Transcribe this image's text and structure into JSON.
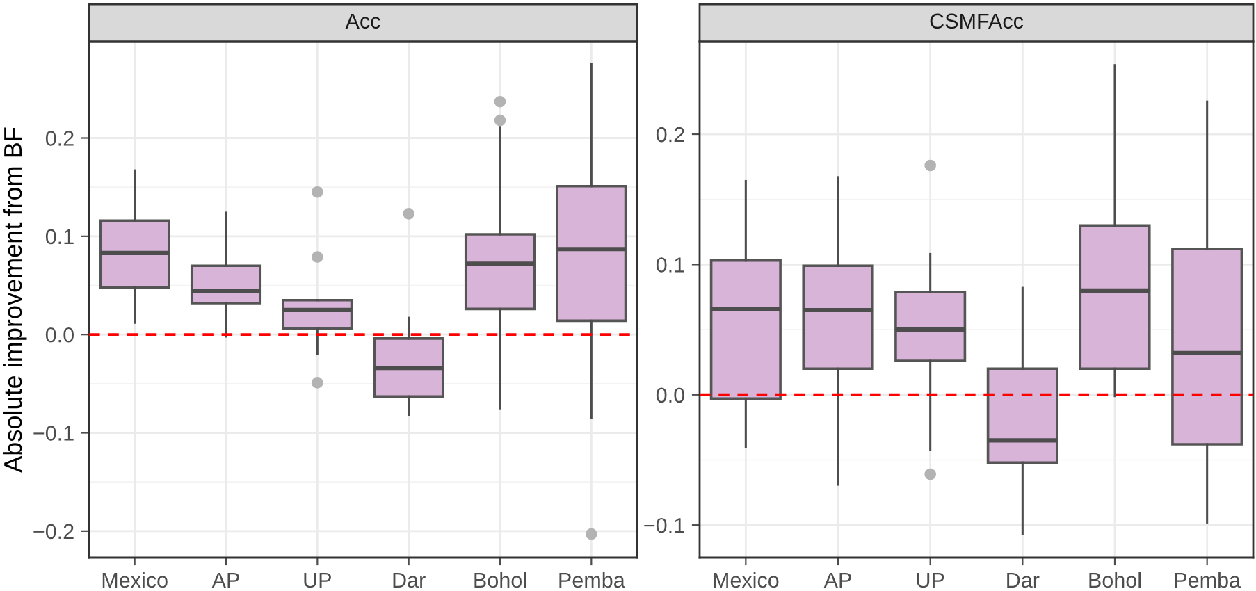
{
  "chart_data": [
    {
      "type": "box",
      "title": "Acc",
      "ylabel": "Absolute improvement from BF",
      "categories": [
        "Mexico",
        "AP",
        "UP",
        "Dar",
        "Bohol",
        "Pemba"
      ],
      "ylim": [
        -0.227,
        0.298
      ],
      "yticks": [
        {
          "value": -0.2,
          "label": "−0.2"
        },
        {
          "value": -0.1,
          "label": "−0.1"
        },
        {
          "value": 0,
          "label": "0.0"
        },
        {
          "value": 0.1,
          "label": "0.1"
        },
        {
          "value": 0.2,
          "label": "0.2"
        }
      ],
      "grid": true,
      "legend": false,
      "series": [
        {
          "color": "#d8b4d8",
          "boxes": [
            {
              "low": 0.012,
              "q1": 0.048,
              "median": 0.083,
              "q3": 0.116,
              "high": 0.167
            },
            {
              "low": -0.002,
              "q1": 0.032,
              "median": 0.044,
              "q3": 0.07,
              "high": 0.124
            },
            {
              "low": -0.02,
              "q1": 0.006,
              "median": 0.025,
              "q3": 0.035,
              "high": 0.035,
              "outliers": [
                0.145,
                0.079,
                -0.049
              ]
            },
            {
              "low": -0.082,
              "q1": -0.063,
              "median": -0.034,
              "q3": -0.004,
              "high": 0.017,
              "outliers": [
                0.123
              ]
            },
            {
              "low": -0.075,
              "q1": 0.026,
              "median": 0.072,
              "q3": 0.102,
              "high": 0.214,
              "outliers": [
                0.237,
                0.218
              ]
            },
            {
              "low": -0.085,
              "q1": 0.014,
              "median": 0.087,
              "q3": 0.151,
              "high": 0.275,
              "outliers": [
                -0.203
              ]
            }
          ]
        }
      ],
      "ref_lines": [
        {
          "axis": "y",
          "value": 0,
          "color": "#ff0000",
          "line_style": "dashed"
        }
      ]
    },
    {
      "type": "box",
      "title": "CSMFAcc",
      "categories": [
        "Mexico",
        "AP",
        "UP",
        "Dar",
        "Bohol",
        "Pemba"
      ],
      "ylim": [
        -0.125,
        0.271
      ],
      "yticks": [
        {
          "value": -0.1,
          "label": "−0.1"
        },
        {
          "value": 0,
          "label": "0.0"
        },
        {
          "value": 0.1,
          "label": "0.1"
        },
        {
          "value": 0.2,
          "label": "0.2"
        }
      ],
      "grid": true,
      "legend": false,
      "series": [
        {
          "color": "#d8b4d8",
          "boxes": [
            {
              "low": -0.04,
              "q1": -0.003,
              "median": 0.066,
              "q3": 0.103,
              "high": 0.164
            },
            {
              "low": -0.069,
              "q1": 0.02,
              "median": 0.065,
              "q3": 0.099,
              "high": 0.167
            },
            {
              "low": -0.042,
              "q1": 0.026,
              "median": 0.05,
              "q3": 0.079,
              "high": 0.108,
              "outliers": [
                0.176,
                -0.061
              ]
            },
            {
              "low": -0.107,
              "q1": -0.052,
              "median": -0.035,
              "q3": 0.02,
              "high": 0.082
            },
            {
              "low": -0.001,
              "q1": 0.02,
              "median": 0.08,
              "q3": 0.13,
              "high": 0.253
            },
            {
              "low": -0.098,
              "q1": -0.038,
              "median": 0.032,
              "q3": 0.112,
              "high": 0.225
            }
          ]
        }
      ],
      "ref_lines": [
        {
          "axis": "y",
          "value": 0,
          "color": "#ff0000",
          "line_style": "dashed"
        }
      ]
    }
  ]
}
